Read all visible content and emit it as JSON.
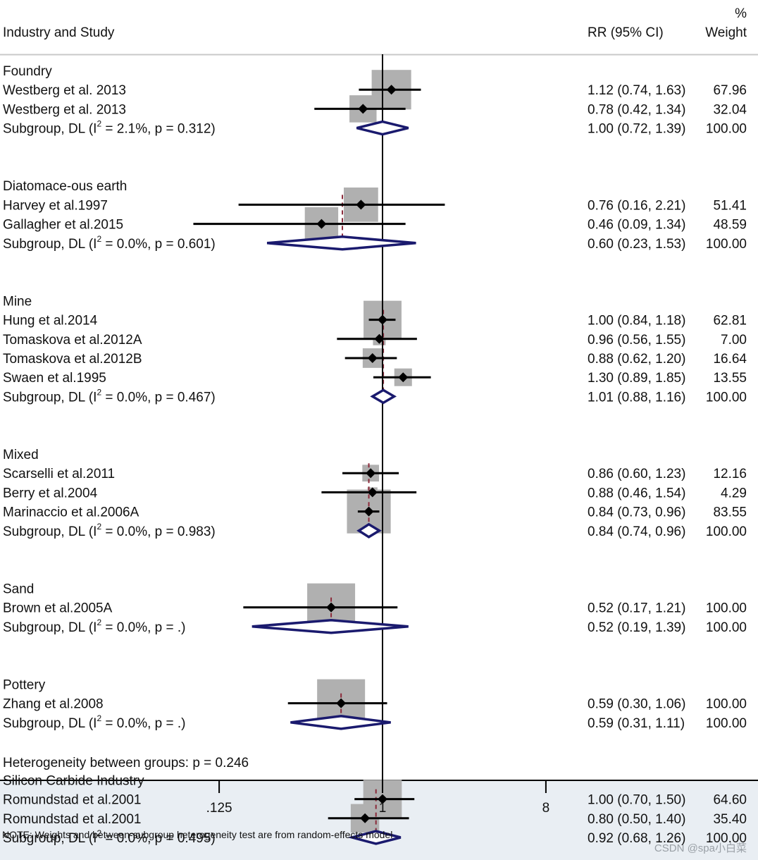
{
  "header": {
    "col_study": "Industry and Study",
    "col_rr": "RR (95% CI)",
    "col_weight_pct": "%",
    "col_weight": "Weight"
  },
  "colors": {
    "ci_line": "#000000",
    "weight_box": "#b0b0b0",
    "diamond": "#1a1a6e",
    "dashed_line": "#8b2a3a",
    "bottom_band": "#e9eef3"
  },
  "chart_data": {
    "type": "forest",
    "measure": "RR",
    "x_scale": "log",
    "null_value": 1,
    "xlim": [
      0.0667,
      40
    ],
    "x_ticks": [
      0.125,
      1,
      8
    ],
    "x_tick_labels": [
      ".125",
      "1",
      "8"
    ],
    "groups": [
      {
        "name": "Foundry",
        "studies": [
          {
            "label": "Westberg et al. 2013",
            "rr": 1.12,
            "lo": 0.74,
            "hi": 1.63,
            "weight": 67.96,
            "rr_text": "1.12 (0.74, 1.63)",
            "weight_text": "67.96"
          },
          {
            "label": "Westberg et al. 2013",
            "rr": 0.78,
            "lo": 0.42,
            "hi": 1.34,
            "weight": 32.04,
            "rr_text": "0.78 (0.42, 1.34)",
            "weight_text": "32.04"
          }
        ],
        "subgroup": {
          "label_prefix": "Subgroup, DL (I",
          "sup": "2",
          "label_suffix": " = 2.1%, p = 0.312)",
          "rr": 1.0,
          "lo": 0.72,
          "hi": 1.39,
          "rr_text": "1.00 (0.72, 1.39)",
          "weight_text": "100.00"
        }
      },
      {
        "name": "Diatomace-ous earth",
        "studies": [
          {
            "label": "Harvey et al.1997",
            "rr": 0.76,
            "lo": 0.16,
            "hi": 2.21,
            "weight": 51.41,
            "rr_text": "0.76 (0.16, 2.21)",
            "weight_text": "51.41"
          },
          {
            "label": "Gallagher et al.2015",
            "rr": 0.46,
            "lo": 0.09,
            "hi": 1.34,
            "weight": 48.59,
            "rr_text": "0.46 (0.09, 1.34)",
            "weight_text": "48.59"
          }
        ],
        "subgroup": {
          "label_prefix": "Subgroup, DL (I",
          "sup": "2",
          "label_suffix": " = 0.0%, p = 0.601)",
          "rr": 0.6,
          "lo": 0.23,
          "hi": 1.53,
          "rr_text": "0.60 (0.23, 1.53)",
          "weight_text": "100.00"
        }
      },
      {
        "name": "Mine",
        "studies": [
          {
            "label": "Hung et al.2014",
            "rr": 1.0,
            "lo": 0.84,
            "hi": 1.18,
            "weight": 62.81,
            "rr_text": "1.00 (0.84, 1.18)",
            "weight_text": "62.81"
          },
          {
            "label": "Tomaskova et al.2012A",
            "rr": 0.96,
            "lo": 0.56,
            "hi": 1.55,
            "weight": 7.0,
            "rr_text": "0.96 (0.56, 1.55)",
            "weight_text": "7.00"
          },
          {
            "label": "Tomaskova et al.2012B",
            "rr": 0.88,
            "lo": 0.62,
            "hi": 1.2,
            "weight": 16.64,
            "rr_text": "0.88 (0.62, 1.20)",
            "weight_text": "16.64"
          },
          {
            "label": "Swaen et al.1995",
            "rr": 1.3,
            "lo": 0.89,
            "hi": 1.85,
            "weight": 13.55,
            "rr_text": "1.30 (0.89, 1.85)",
            "weight_text": "13.55"
          }
        ],
        "subgroup": {
          "label_prefix": "Subgroup, DL (I",
          "sup": "2",
          "label_suffix": " = 0.0%, p = 0.467)",
          "rr": 1.01,
          "lo": 0.88,
          "hi": 1.16,
          "rr_text": "1.01 (0.88, 1.16)",
          "weight_text": "100.00"
        }
      },
      {
        "name": "Mixed",
        "studies": [
          {
            "label": "Scarselli et al.2011",
            "rr": 0.86,
            "lo": 0.6,
            "hi": 1.23,
            "weight": 12.16,
            "rr_text": "0.86 (0.60, 1.23)",
            "weight_text": "12.16"
          },
          {
            "label": "Berry et al.2004",
            "rr": 0.88,
            "lo": 0.46,
            "hi": 1.54,
            "weight": 4.29,
            "rr_text": "0.88 (0.46, 1.54)",
            "weight_text": "4.29"
          },
          {
            "label": "Marinaccio et al.2006A",
            "rr": 0.84,
            "lo": 0.73,
            "hi": 0.96,
            "weight": 83.55,
            "rr_text": "0.84 (0.73, 0.96)",
            "weight_text": "83.55"
          }
        ],
        "subgroup": {
          "label_prefix": "Subgroup, DL (I",
          "sup": "2",
          "label_suffix": " = 0.0%, p = 0.983)",
          "rr": 0.84,
          "lo": 0.74,
          "hi": 0.96,
          "rr_text": "0.84 (0.74, 0.96)",
          "weight_text": "100.00"
        }
      },
      {
        "name": "Sand",
        "studies": [
          {
            "label": "Brown et al.2005A",
            "rr": 0.52,
            "lo": 0.17,
            "hi": 1.21,
            "weight": 100.0,
            "rr_text": "0.52 (0.17, 1.21)",
            "weight_text": "100.00"
          }
        ],
        "subgroup": {
          "label_prefix": "Subgroup, DL (I",
          "sup": "2",
          "label_suffix": " = 0.0%, p = .)",
          "rr": 0.52,
          "lo": 0.19,
          "hi": 1.39,
          "rr_text": "0.52 (0.19, 1.39)",
          "weight_text": "100.00"
        }
      },
      {
        "name": "Pottery",
        "studies": [
          {
            "label": "Zhang et al.2008",
            "rr": 0.59,
            "lo": 0.3,
            "hi": 1.06,
            "weight": 100.0,
            "rr_text": "0.59 (0.30, 1.06)",
            "weight_text": "100.00"
          }
        ],
        "subgroup": {
          "label_prefix": "Subgroup, DL (I",
          "sup": "2",
          "label_suffix": " = 0.0%, p = .)",
          "rr": 0.59,
          "lo": 0.31,
          "hi": 1.11,
          "rr_text": "0.59 (0.31, 1.11)",
          "weight_text": "100.00"
        }
      },
      {
        "name": "Silicon Carbide Industry",
        "studies": [
          {
            "label": "Romundstad et al.2001",
            "rr": 1.0,
            "lo": 0.7,
            "hi": 1.5,
            "weight": 64.6,
            "rr_text": "1.00 (0.70, 1.50)",
            "weight_text": "64.60"
          },
          {
            "label": "Romundstad et al.2001",
            "rr": 0.8,
            "lo": 0.5,
            "hi": 1.4,
            "weight": 35.4,
            "rr_text": "0.80 (0.50, 1.40)",
            "weight_text": "35.40"
          }
        ],
        "subgroup": {
          "label_prefix": "Subgroup, DL (I",
          "sup": "2",
          "label_suffix": " = 0.0%, p = 0.495)",
          "rr": 0.92,
          "lo": 0.68,
          "hi": 1.26,
          "rr_text": "0.92 (0.68, 1.26)",
          "weight_text": "100.00"
        }
      }
    ],
    "heterogeneity": "Heterogeneity between groups: p = 0.246",
    "note": "NOTE: Weights and between-subgroup heterogeneity test are from random-effects model"
  },
  "watermark": "CSDN @spa小白菜"
}
